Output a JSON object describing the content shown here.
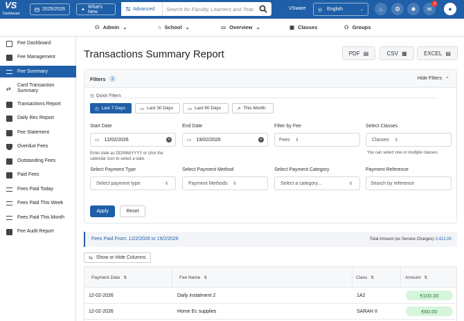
{
  "topbar": {
    "logo_text": "VS",
    "logo_sub": "Dashboard",
    "year": "2025/2026",
    "whats_new": "What's New",
    "advanced": "Advanced",
    "search_placeholder": "Search for Faculty, Learners and Teac",
    "vsware": "VSware",
    "language": "English",
    "notif_count": "3"
  },
  "nav": {
    "admin": "Admin",
    "school": "School",
    "overview": "Overview",
    "classes": "Classes",
    "groups": "Groups"
  },
  "sidebar": {
    "items": [
      {
        "label": "Fee Dashboard",
        "icon": "dashboard-icon"
      },
      {
        "label": "Fee Management",
        "icon": "briefcase-icon"
      },
      {
        "label": "Fee Summary",
        "icon": "list-icon",
        "active": true
      },
      {
        "label": "Card Transaction Summary",
        "icon": "swap-icon"
      },
      {
        "label": "Transactions Report",
        "icon": "report-icon"
      },
      {
        "label": "Daily Rec Report",
        "icon": "calendar-icon"
      },
      {
        "label": "Fee Statement",
        "icon": "statement-icon"
      },
      {
        "label": "Overdue Fees",
        "icon": "shield-icon"
      },
      {
        "label": "Outstanding Fees",
        "icon": "wallet-icon"
      },
      {
        "label": "Paid Fees",
        "icon": "receipt-icon"
      },
      {
        "label": "Fees Paid Today",
        "icon": "lines-icon"
      },
      {
        "label": "Fees Paid This Week",
        "icon": "lines-icon"
      },
      {
        "label": "Fees Paid This Month",
        "icon": "lines-icon"
      },
      {
        "label": "Fee Audit Report",
        "icon": "audit-icon"
      }
    ]
  },
  "main": {
    "title": "Transactions Summary Report",
    "export": {
      "pdf": "PDF",
      "csv": "CSV",
      "excel": "EXCEL"
    },
    "filters": {
      "title": "Filters",
      "count": "2",
      "hide": "Hide Filters",
      "quick_label": "Quick Filters",
      "quick": [
        "Last 7 Days",
        "Last 30 Days",
        "Last 90 Days",
        "This Month"
      ],
      "start_label": "Start Date",
      "start_value": "12/02/2026",
      "end_label": "End Date",
      "end_value": "19/02/2026",
      "date_hint": "Enter date as DD/MM/YYYY or click the calendar icon to select a date.",
      "fee_label": "Filter by Fee",
      "fee_value": "Fees",
      "classes_label": "Select Classes",
      "classes_value": "Classes",
      "classes_hint": "You can select one or multiple classes.",
      "ptype_label": "Select Payment Type",
      "ptype_placeholder": "Select payment type",
      "pmethod_label": "Select Payment Method",
      "pmethod_value": "Payment Methods",
      "pcat_label": "Select Payment Category",
      "pcat_placeholder": "Select a category...",
      "pref_label": "Payment Reference",
      "pref_placeholder": "Search by reference",
      "apply": "Apply",
      "reset": "Reset"
    },
    "paid_from": "Fees Paid From: 12/2/2026 to 19/2/2026",
    "total_label": "Total Amount (ex Service Charges):",
    "total_value": "2,421.00",
    "show_hide": "Show or Hide Columns",
    "table": {
      "headers": [
        "Payment Date",
        "Fee Name",
        "Class",
        "Amount"
      ],
      "rows": [
        [
          "12-02-2026",
          "Daily instalment 2",
          "1A2",
          "€100.00"
        ],
        [
          "12-02-2026",
          "Home Ec supplies",
          "SARAH II",
          "€60.00"
        ]
      ]
    }
  }
}
